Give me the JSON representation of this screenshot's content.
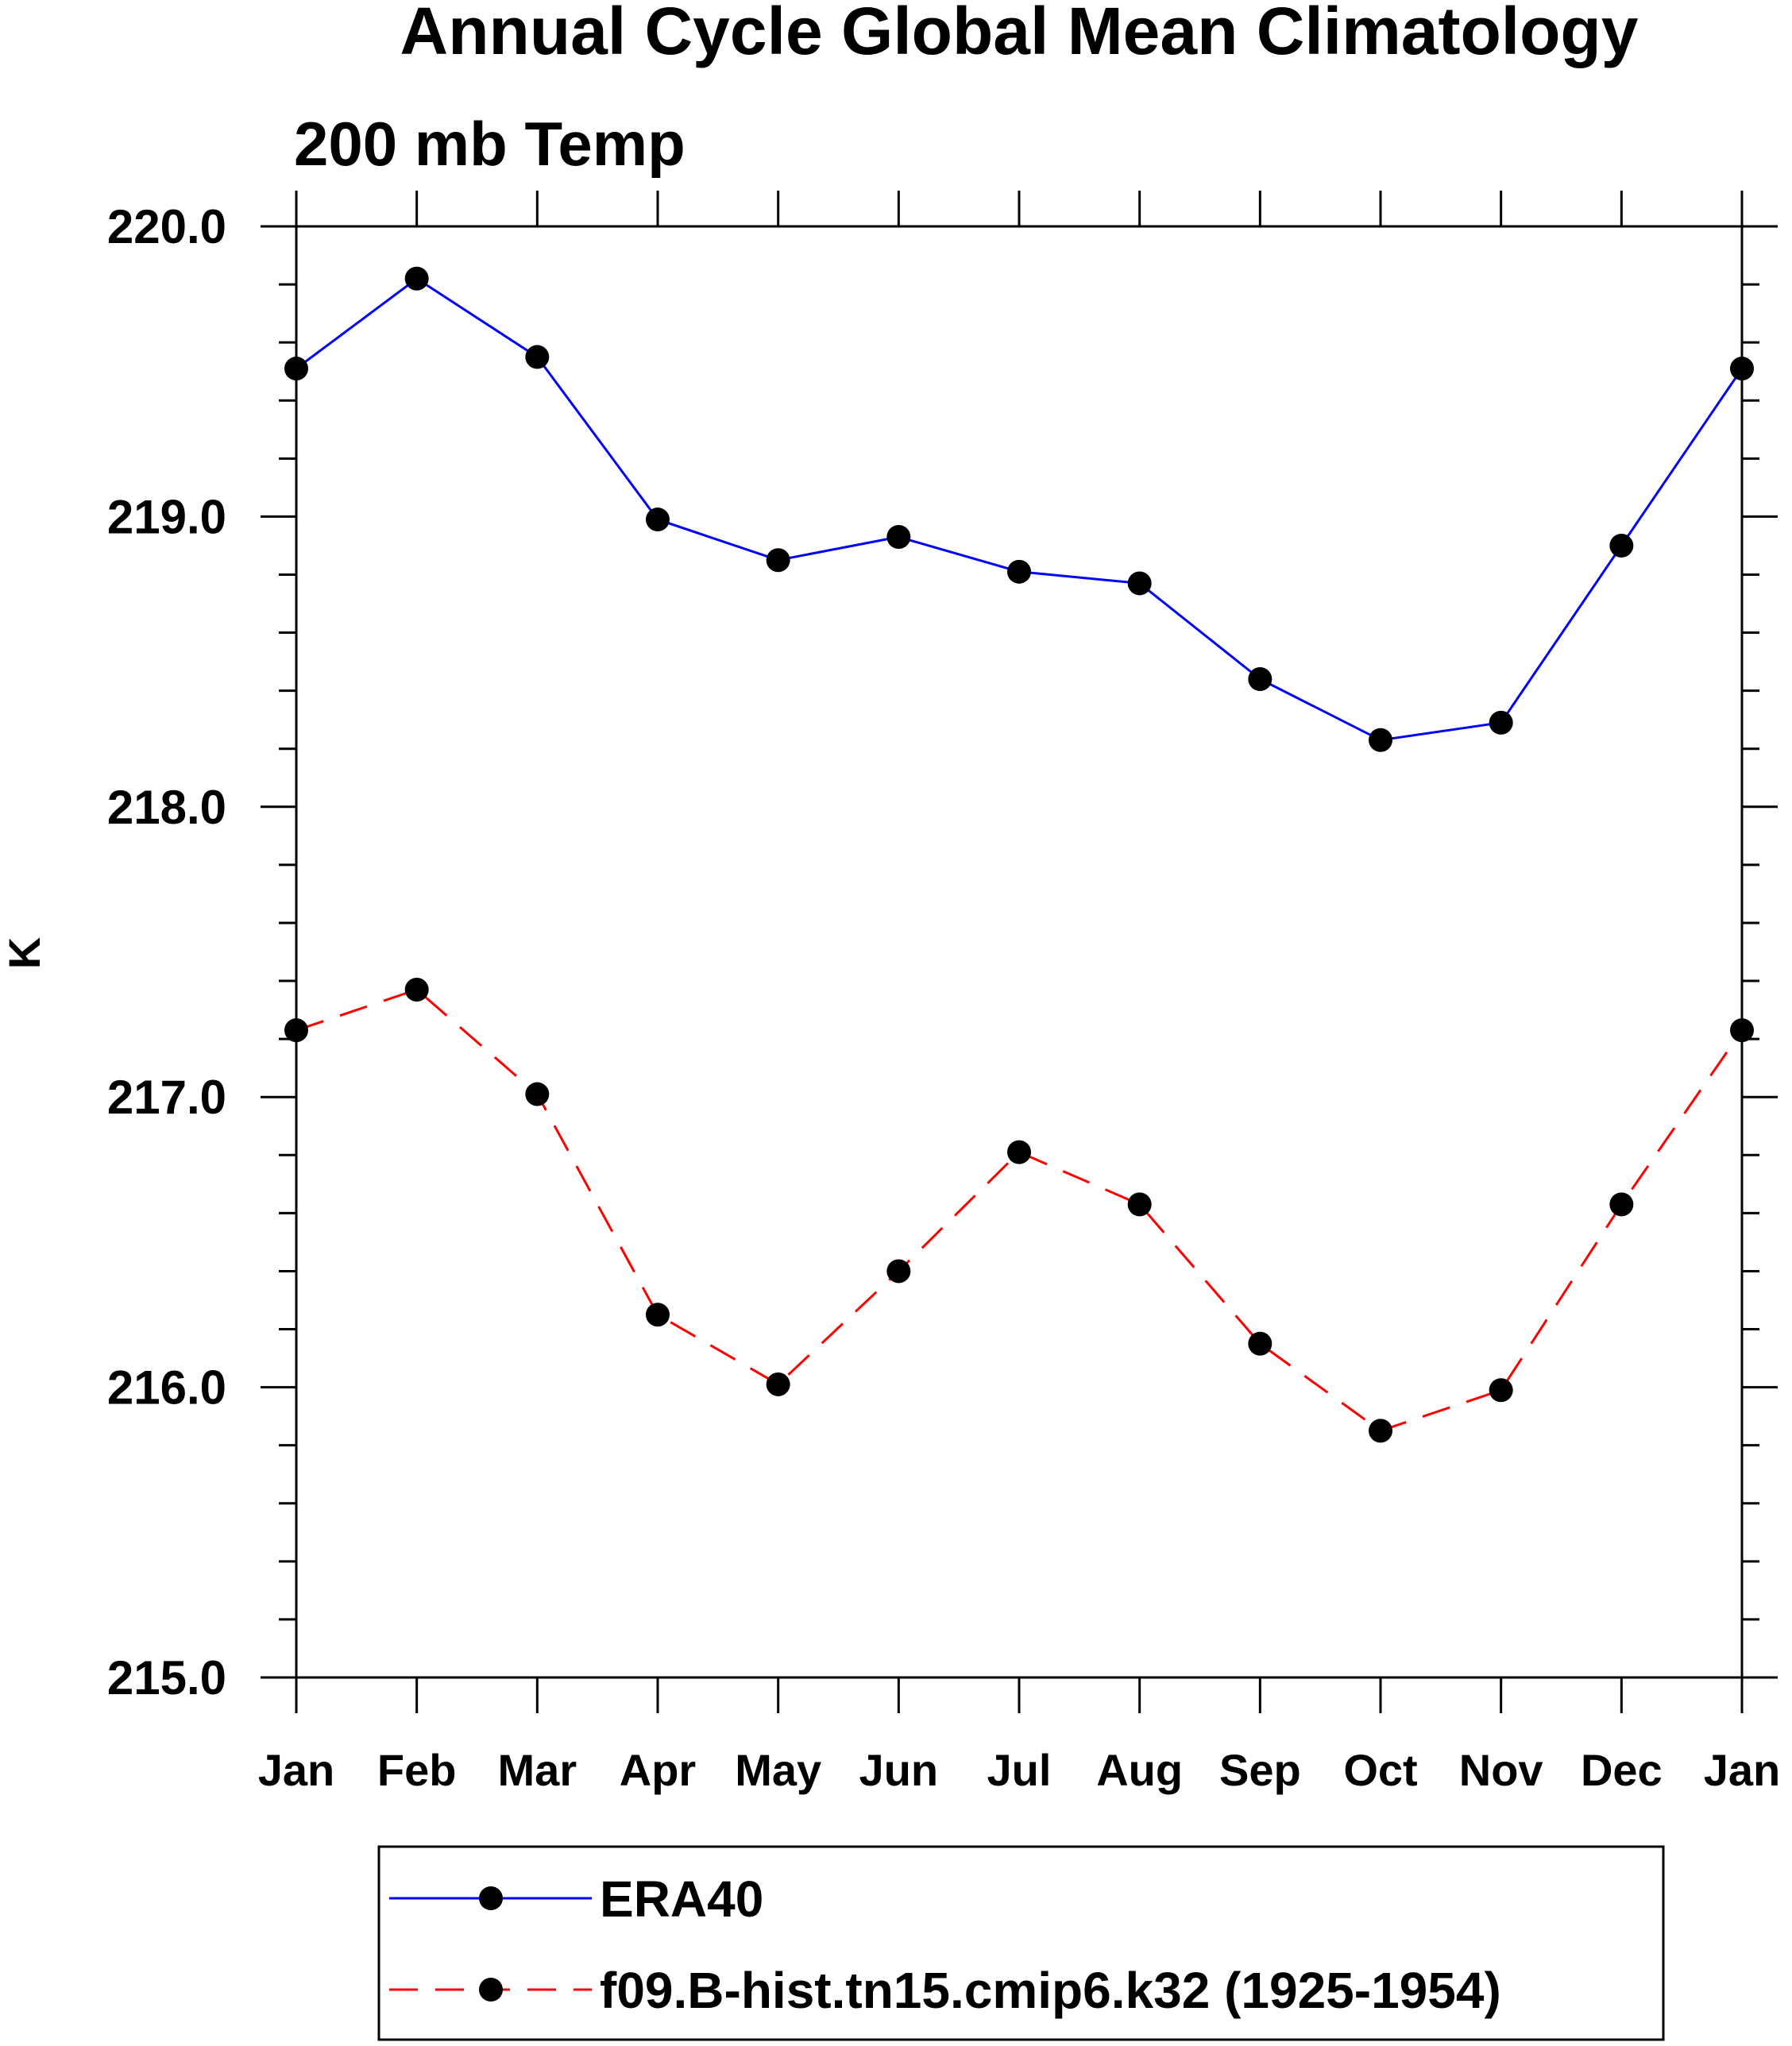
{
  "colors": {
    "background": "#ffffff",
    "axis": "#000000",
    "marker": "#000000",
    "era40": "#0000ff",
    "model": "#ff0000"
  },
  "chart_data": {
    "type": "line",
    "title": "Annual Cycle Global Mean Climatology",
    "subtitle": "200 mb Temp",
    "xlabel": "",
    "ylabel": "K",
    "categories": [
      "Jan",
      "Feb",
      "Mar",
      "Apr",
      "May",
      "Jun",
      "Jul",
      "Aug",
      "Sep",
      "Oct",
      "Nov",
      "Dec",
      "Jan"
    ],
    "ylim": [
      215.0,
      220.0
    ],
    "yticks": [
      "215.0",
      "216.0",
      "217.0",
      "218.0",
      "219.0",
      "220.0"
    ],
    "y_minor_step": 0.2,
    "grid": false,
    "legend_position": "bottom-center",
    "series": [
      {
        "name": "ERA40",
        "line_style": "solid",
        "marker": "filled-circle",
        "values": [
          219.51,
          219.82,
          219.55,
          218.99,
          218.85,
          218.93,
          218.81,
          218.77,
          218.44,
          218.23,
          218.29,
          218.9,
          219.51
        ]
      },
      {
        "name": "f09.B-hist.tn15.cmip6.k32 (1925-1954)",
        "line_style": "dashed",
        "marker": "filled-circle",
        "values": [
          217.23,
          217.37,
          217.01,
          216.25,
          216.01,
          216.4,
          216.81,
          216.63,
          216.15,
          215.85,
          215.99,
          216.63,
          217.23
        ]
      }
    ]
  }
}
